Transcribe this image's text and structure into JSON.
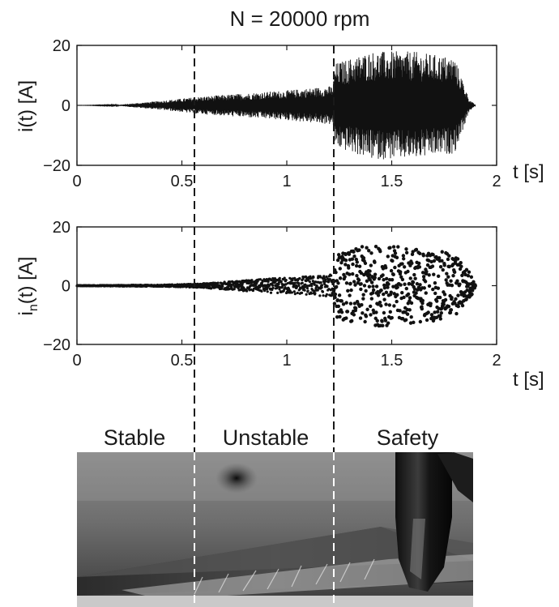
{
  "figure": {
    "title": "N = 20000 rpm",
    "regions": [
      "Stable",
      "Unstable",
      "Safety"
    ],
    "boundaries_s": [
      0.57,
      1.22
    ]
  },
  "chart_data": [
    {
      "type": "line",
      "title": "N = 20000 rpm",
      "ylabel": "i(t) [A]",
      "xlabel": "t [s]",
      "xlim": [
        0,
        2
      ],
      "ylim": [
        -20,
        20
      ],
      "xticks": [
        "0",
        "0.5",
        "1",
        "1.5",
        "2"
      ],
      "yticks": [
        "20",
        "0",
        "-20"
      ],
      "grid": false,
      "series": [
        {
          "envelope_t": [
            0.0,
            0.2,
            0.4,
            0.57,
            0.8,
            1.0,
            1.22,
            1.23,
            1.4,
            1.6,
            1.8,
            1.87,
            1.9
          ],
          "envelope_amp": [
            0.0,
            0.2,
            1.5,
            2.8,
            4.0,
            5.0,
            6.5,
            14,
            18,
            18,
            16,
            2,
            0
          ]
        }
      ]
    },
    {
      "type": "scatter",
      "ylabel": "i_n(t) [A]",
      "xlabel": "t [s]",
      "xlim": [
        0,
        2
      ],
      "ylim": [
        -20,
        20
      ],
      "xticks": [
        "0",
        "0.5",
        "1",
        "1.5",
        "2"
      ],
      "yticks": [
        "20",
        "0",
        "-20"
      ],
      "grid": false,
      "series": [
        {
          "envelope_t": [
            0.0,
            0.4,
            0.57,
            0.8,
            1.0,
            1.22,
            1.23,
            1.4,
            1.6,
            1.8,
            1.87,
            1.9
          ],
          "envelope_amp": [
            0.1,
            0.3,
            0.6,
            1.8,
            2.8,
            3.8,
            11,
            14,
            13,
            11,
            5,
            0
          ]
        }
      ]
    }
  ],
  "photo": {
    "description_icon": "machining-tool-photo"
  }
}
